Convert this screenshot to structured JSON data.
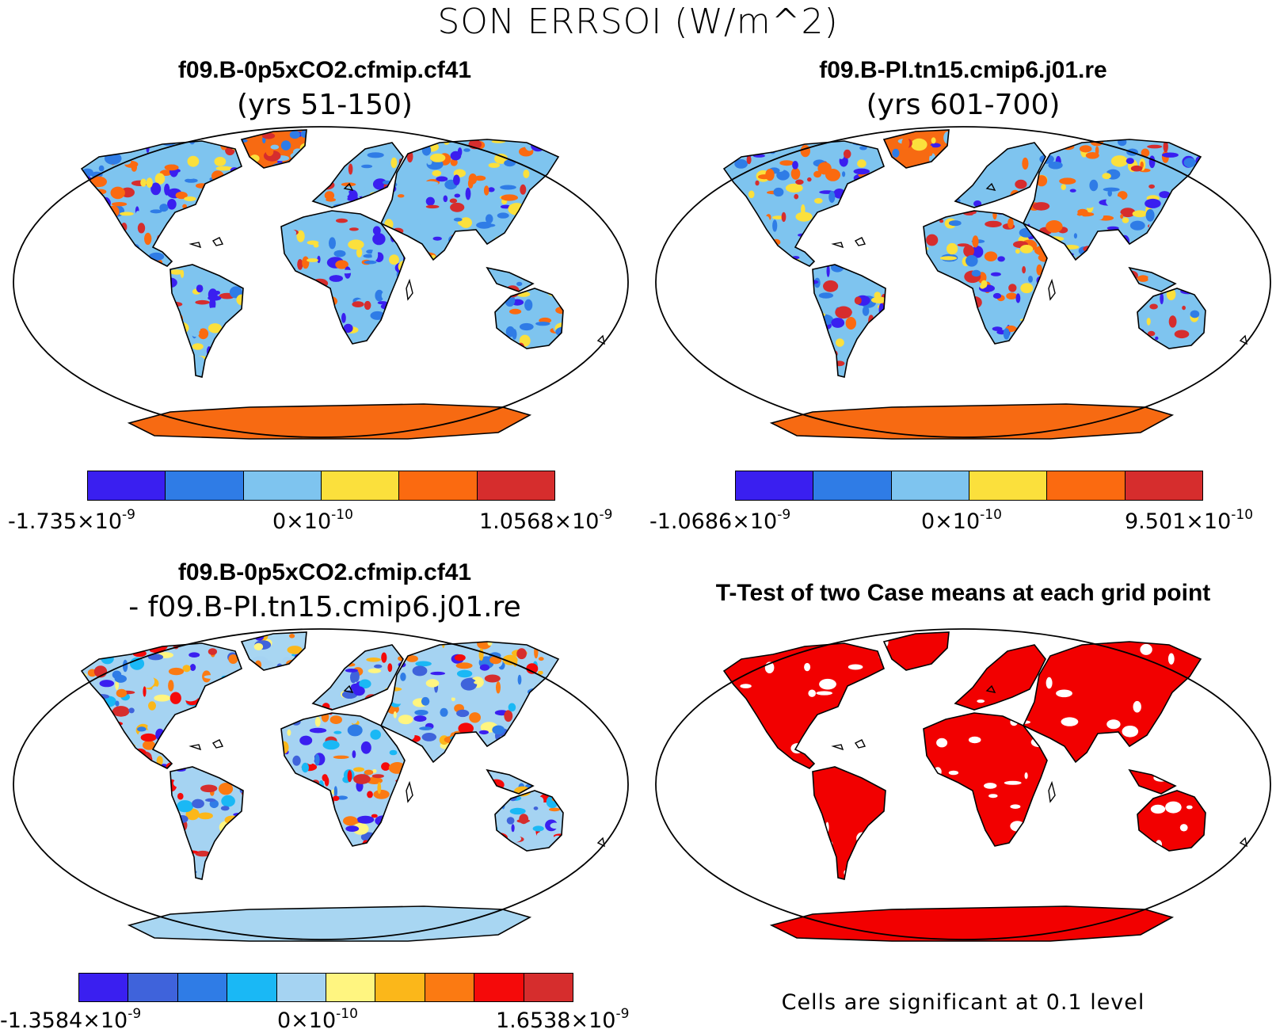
{
  "figure": {
    "title": "SON ERRSOI (W/m^2)"
  },
  "panels": [
    {
      "title": "f09.B-0p5xCO2.cfmip.cf41",
      "subtitle": "(yrs 51-150)",
      "colors": [
        "#3a1ff0",
        "#2f7ce6",
        "#7ec4ef",
        "#fbe03c",
        "#fb6a10",
        "#d62d2d"
      ],
      "antarctica_color": "#f76a12",
      "colorbar": {
        "min_mant": "-1.735×10",
        "min_exp": "-9",
        "mid_mant": "0×10",
        "mid_exp": "-10",
        "max_mant": "1.0568×10",
        "max_exp": "-9"
      }
    },
    {
      "title": "f09.B-PI.tn15.cmip6.j01.re",
      "subtitle": "(yrs 601-700)",
      "colors": [
        "#3a1ff0",
        "#2f7ce6",
        "#7ec4ef",
        "#fbe03c",
        "#fb6a10",
        "#d62d2d"
      ],
      "antarctica_color": "#f76a12",
      "colorbar": {
        "min_mant": "-1.0686×10",
        "min_exp": "-9",
        "mid_mant": "0×10",
        "mid_exp": "-10",
        "max_mant": "9.501×10",
        "max_exp": "-10"
      }
    },
    {
      "title": "f09.B-0p5xCO2.cfmip.cf41",
      "subtitle": "- f09.B-PI.tn15.cmip6.j01.re",
      "colors": [
        "#3a1ff0",
        "#3f63db",
        "#2f7ce6",
        "#1ab8f5",
        "#a5d3f2",
        "#fff580",
        "#fbb71a",
        "#fb7a12",
        "#f50a0a",
        "#d62d2d"
      ],
      "antarctica_color": "#a8d6f2",
      "colorbar": {
        "min_mant": "-1.3584×10",
        "min_exp": "-9",
        "mid_mant": "0×10",
        "mid_exp": "-10",
        "max_mant": "1.6538×10",
        "max_exp": "-9"
      }
    },
    {
      "title": "T-Test of two Case means at each grid point",
      "land_color": "#f20000",
      "note": "Cells are significant at 0.1 level"
    }
  ]
}
